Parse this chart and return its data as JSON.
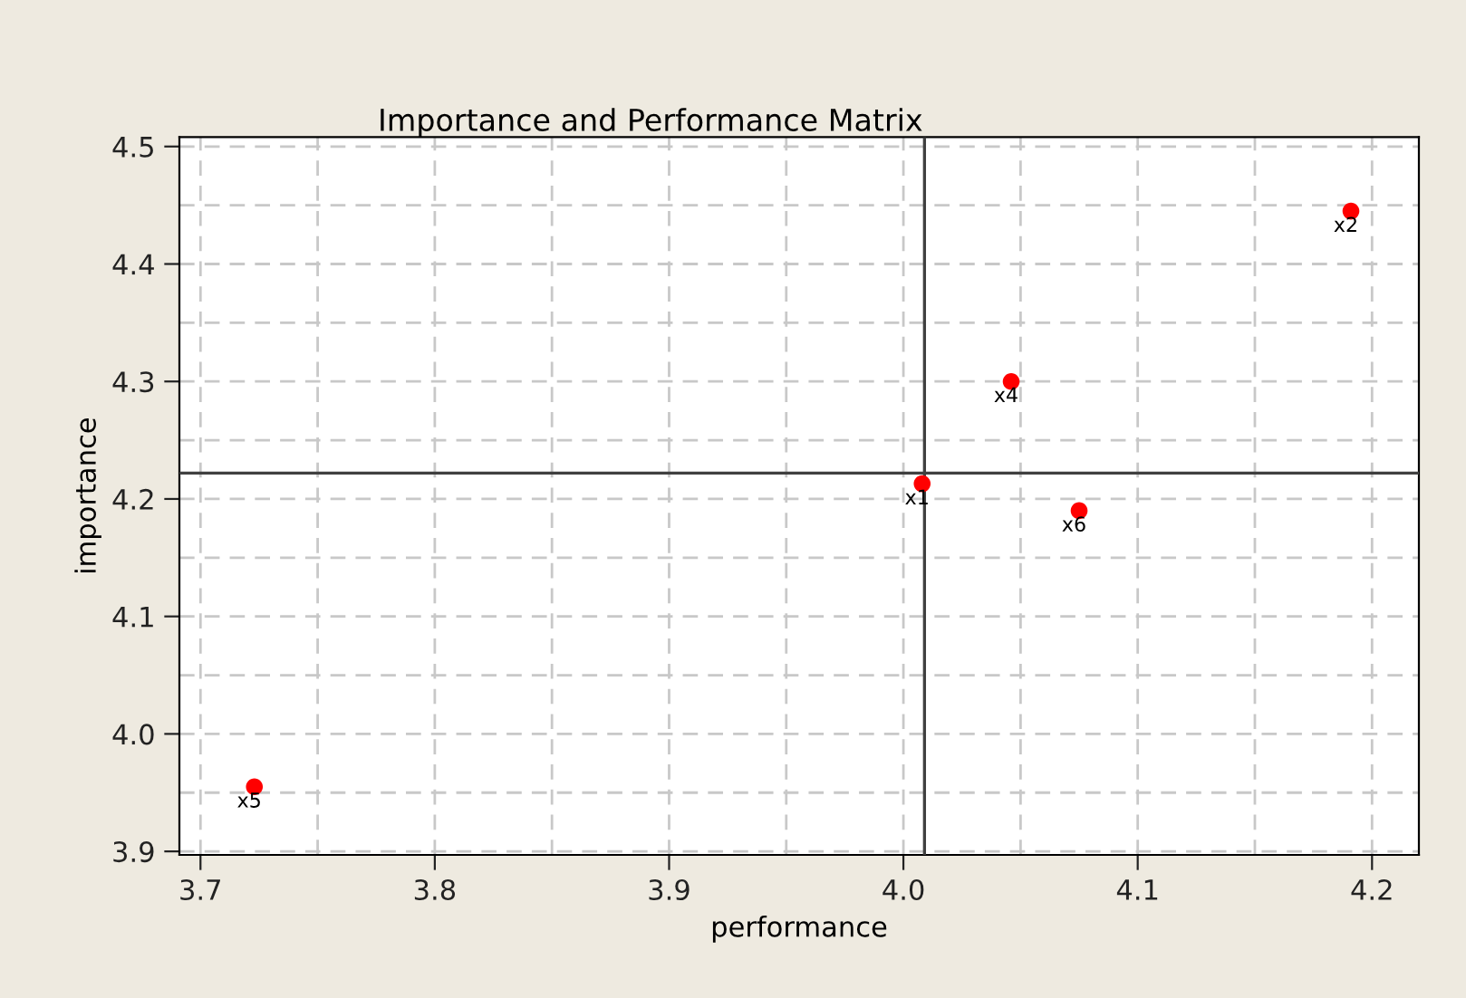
{
  "chart_data": {
    "type": "scatter",
    "title": "Importance and Performance Matrix",
    "xlabel": "performance",
    "ylabel": "importance",
    "x": [
      4.008,
      4.191,
      3.723,
      4.046,
      4.075
    ],
    "values": [
      4.213,
      4.445,
      3.955,
      4.3,
      4.19
    ],
    "color": "#ff0000",
    "marker": "circle",
    "annotations": [
      {
        "text": "x1",
        "x": 4.008,
        "y": 4.213
      },
      {
        "text": "x2",
        "x": 4.191,
        "y": 4.445
      },
      {
        "text": "x5",
        "x": 3.723,
        "y": 3.955
      },
      {
        "text": "x4",
        "x": 4.046,
        "y": 4.3
      },
      {
        "text": "x6",
        "x": 4.075,
        "y": 4.19
      }
    ],
    "ref_lines": [
      {
        "axis": "x",
        "value": 4.009,
        "color": "#404040"
      },
      {
        "axis": "y",
        "value": 4.222,
        "color": "#404040"
      }
    ],
    "xlim": [
      3.691,
      4.22
    ],
    "ylim": [
      3.897,
      4.508
    ],
    "xticks": [
      3.7,
      {
        "value": 3.75,
        "label": null
      },
      3.8,
      {
        "value": 3.85,
        "label": null
      },
      3.9,
      {
        "value": 3.95,
        "label": null
      },
      {
        "value": 4.0,
        "label": "4.0"
      },
      {
        "value": 4.05,
        "label": null
      },
      4.1,
      {
        "value": 4.15,
        "label": null
      },
      4.2
    ],
    "yticks": [
      3.9,
      {
        "value": 3.95,
        "label": null
      },
      {
        "value": 4.0,
        "label": "4.0"
      },
      {
        "value": 4.05,
        "label": null
      },
      4.1,
      {
        "value": 4.15,
        "label": null
      },
      4.2,
      {
        "value": 4.25,
        "label": null
      },
      4.3,
      {
        "value": 4.35,
        "label": null
      },
      4.4,
      {
        "value": 4.45,
        "label": null
      },
      4.5
    ],
    "grid": true,
    "line_style": "dashed"
  }
}
